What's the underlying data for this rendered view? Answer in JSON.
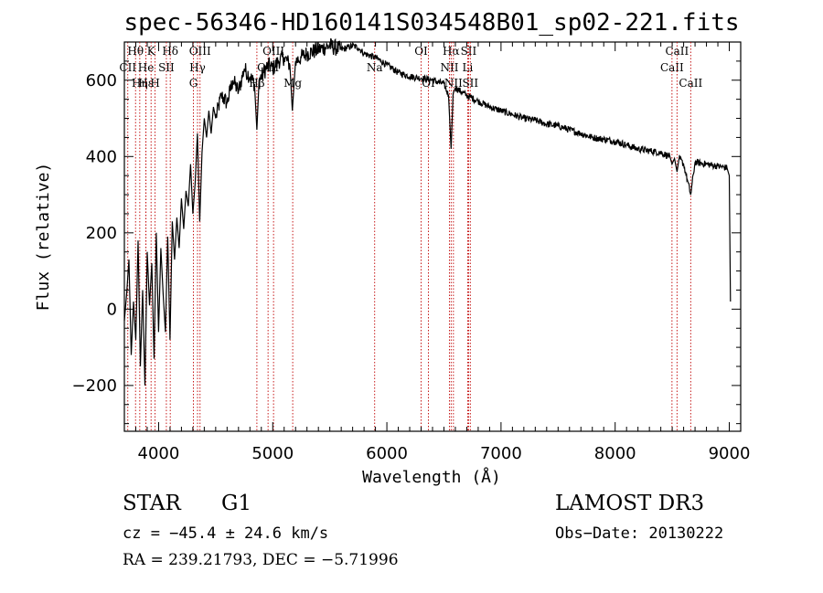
{
  "chart_data": {
    "type": "line",
    "title": "spec-56346-HD160141S034548B01_sp02-221.fits",
    "xlabel": "Wavelength (Å)",
    "ylabel": "Flux (relative)",
    "xlim": [
      3700,
      9100
    ],
    "ylim": [
      -320,
      700
    ],
    "xticks": [
      4000,
      5000,
      6000,
      7000,
      8000,
      9000
    ],
    "xtick_labels": [
      "4000",
      "5000",
      "6000",
      "7000",
      "8000",
      "9000"
    ],
    "yticks": [
      -200,
      0,
      200,
      400,
      600
    ],
    "ytick_labels": [
      "−200",
      "0",
      "200",
      "400",
      "600"
    ],
    "grid": false,
    "series": [
      {
        "name": "flux",
        "x": [
          3700,
          3720,
          3740,
          3760,
          3780,
          3800,
          3820,
          3840,
          3860,
          3880,
          3900,
          3920,
          3940,
          3960,
          3980,
          4000,
          4020,
          4040,
          4060,
          4080,
          4100,
          4120,
          4140,
          4160,
          4180,
          4200,
          4220,
          4240,
          4260,
          4280,
          4300,
          4320,
          4340,
          4360,
          4380,
          4400,
          4420,
          4440,
          4460,
          4480,
          4500,
          4550,
          4600,
          4650,
          4700,
          4750,
          4800,
          4840,
          4861,
          4880,
          4920,
          4960,
          5000,
          5050,
          5100,
          5150,
          5172,
          5200,
          5250,
          5300,
          5400,
          5500,
          5600,
          5700,
          5750,
          5800,
          5895,
          5950,
          6000,
          6100,
          6200,
          6300,
          6400,
          6500,
          6540,
          6563,
          6580,
          6600,
          6700,
          6800,
          6900,
          7000,
          7100,
          7200,
          7300,
          7400,
          7500,
          7600,
          7700,
          7800,
          7900,
          8000,
          8100,
          8200,
          8300,
          8400,
          8480,
          8498,
          8520,
          8542,
          8560,
          8600,
          8662,
          8700,
          8800,
          8900,
          8980,
          9000,
          9010
        ],
        "values": [
          -30,
          40,
          130,
          -120,
          20,
          -80,
          180,
          -150,
          50,
          -200,
          150,
          10,
          120,
          -130,
          200,
          -60,
          160,
          40,
          -60,
          190,
          -80,
          230,
          130,
          240,
          160,
          290,
          210,
          310,
          270,
          380,
          250,
          330,
          460,
          230,
          410,
          500,
          450,
          520,
          460,
          530,
          500,
          560,
          540,
          600,
          570,
          630,
          610,
          590,
          470,
          600,
          620,
          640,
          630,
          650,
          660,
          640,
          520,
          650,
          660,
          670,
          680,
          690,
          680,
          690,
          685,
          670,
          660,
          650,
          640,
          620,
          610,
          605,
          600,
          590,
          560,
          420,
          565,
          580,
          560,
          545,
          530,
          520,
          510,
          500,
          495,
          485,
          480,
          470,
          460,
          450,
          445,
          440,
          430,
          420,
          415,
          410,
          400,
          380,
          395,
          360,
          395,
          380,
          300,
          385,
          380,
          375,
          370,
          350,
          20
        ]
      }
    ],
    "line_markers": [
      {
        "label": "Hθ",
        "x": 3798,
        "row": 0
      },
      {
        "label": "Hη",
        "x": 3835,
        "row": 2
      },
      {
        "label": "CII",
        "x": 3730,
        "row": 1
      },
      {
        "label": "Hε",
        "x": 3889,
        "row": 2
      },
      {
        "label": "He",
        "x": 3889,
        "row": 1
      },
      {
        "label": "K",
        "x": 3934,
        "row": 0
      },
      {
        "label": "H",
        "x": 3969,
        "row": 2
      },
      {
        "label": "SII",
        "x": 4068,
        "row": 1
      },
      {
        "label": "Hδ",
        "x": 4102,
        "row": 0
      },
      {
        "label": "G",
        "x": 4305,
        "row": 2
      },
      {
        "label": "Hγ",
        "x": 4341,
        "row": 1
      },
      {
        "label": "OIII",
        "x": 4363,
        "row": 0
      },
      {
        "label": "Hβ",
        "x": 4861,
        "row": 2
      },
      {
        "label": "OIII",
        "x": 4959,
        "row": 1
      },
      {
        "label": "OIII",
        "x": 5007,
        "row": 0
      },
      {
        "label": "Mg",
        "x": 5175,
        "row": 2
      },
      {
        "label": "Na",
        "x": 5893,
        "row": 1
      },
      {
        "label": "OI",
        "x": 6300,
        "row": 0
      },
      {
        "label": "OI",
        "x": 6364,
        "row": 2
      },
      {
        "label": "NII",
        "x": 6548,
        "row": 1
      },
      {
        "label": "Hα",
        "x": 6563,
        "row": 0
      },
      {
        "label": "NII",
        "x": 6583,
        "row": 2
      },
      {
        "label": "Li",
        "x": 6708,
        "row": 1
      },
      {
        "label": "SII",
        "x": 6716,
        "row": 0
      },
      {
        "label": "SII",
        "x": 6731,
        "row": 2
      },
      {
        "label": "CaII",
        "x": 8498,
        "row": 1
      },
      {
        "label": "CaII",
        "x": 8542,
        "row": 0
      },
      {
        "label": "CaII",
        "x": 8662,
        "row": 2
      }
    ]
  },
  "info": {
    "object_class": "STAR",
    "subclass": "G1",
    "survey": "LAMOST DR3",
    "redshift_line": "cz = −45.4 ± 24.6 km/s",
    "obs_date_line": "Obs−Date: 20130222",
    "coords_line": "RA = 239.21793, DEC =  −5.71996"
  },
  "colors": {
    "spectrum": "#000000",
    "line_marker": "#c00000",
    "axes": "#000000"
  }
}
